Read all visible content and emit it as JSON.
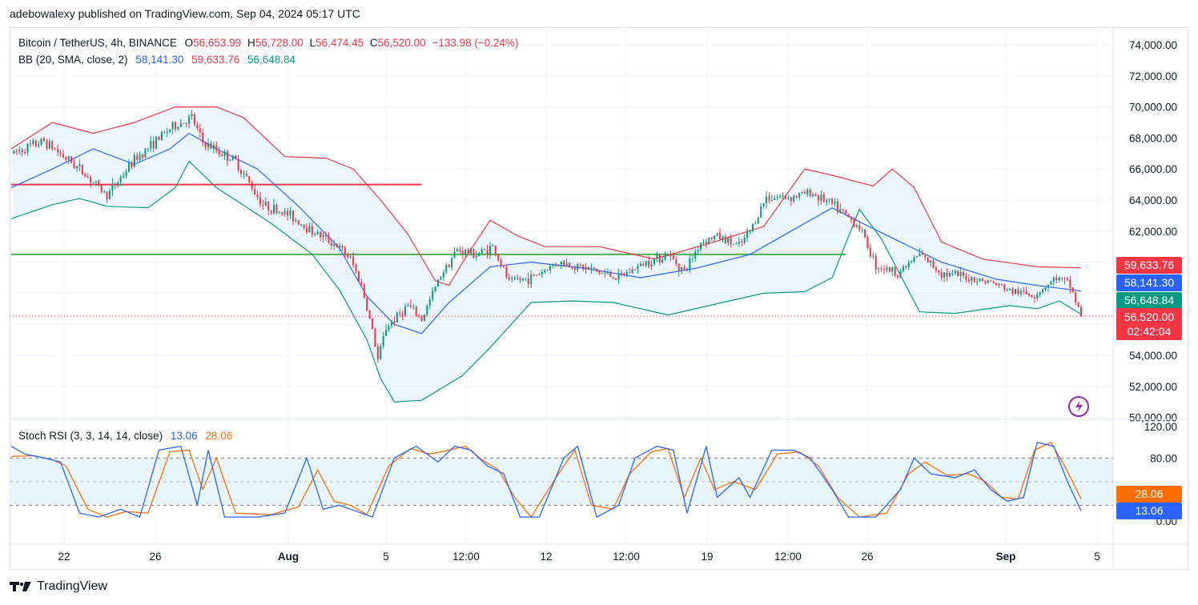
{
  "header": {
    "published_by": "adebowalexy published on TradingView.com, Sep 04, 2024 05:17 UTC"
  },
  "main_legend": {
    "symbol": "Bitcoin / TetherUS, 4h, BINANCE",
    "open_label": "O",
    "open": "56,653.99",
    "high_label": "H",
    "high": "56,728.00",
    "low_label": "L",
    "low": "56,474.45",
    "close_label": "C",
    "close": "56,520.00",
    "change": "−133.98 (−0.24%)"
  },
  "bb_legend": {
    "name": "BB (20, SMA, close, 2)",
    "basis": "58,141.30",
    "upper": "59,633.76",
    "lower": "56,648.84"
  },
  "rsi_legend": {
    "name": "Stoch RSI (3, 3, 14, 14, close)",
    "k": "13.06",
    "d": "28.06"
  },
  "price_axis": {
    "labels": [
      "74,000.00",
      "72,000.00",
      "70,000.00",
      "68,000.00",
      "66,000.00",
      "64,000.00",
      "62,000.00",
      "54,000.00",
      "52,000.00",
      "50,000.00"
    ]
  },
  "price_tags": {
    "upper": "59,633.76",
    "basis": "58,141.30",
    "lower": "56,648.84",
    "last": "56,520.00",
    "countdown": "02:42:04"
  },
  "rsi_axis": {
    "labels": [
      "120.00",
      "80.00",
      "0.00"
    ]
  },
  "rsi_tags": {
    "d": "28.06",
    "k": "13.06"
  },
  "time_axis": {
    "labels": [
      "22",
      "26",
      "Aug",
      "5",
      "12:00",
      "12",
      "12:00",
      "19",
      "12:00",
      "26",
      "Sep",
      "5"
    ]
  },
  "footer": {
    "brand": "TradingView"
  },
  "colors": {
    "up": "#089981",
    "down": "#f23645",
    "bb_basis": "#2962ff",
    "bb_upper": "#f23645",
    "bb_lower": "#089981",
    "bb_fill": "#e3f2fd",
    "k_line": "#2962ff",
    "d_line": "#ff6d00",
    "support_line": "#4caf50",
    "resistance_line": "#f23645"
  },
  "chart_data": [
    {
      "type": "candlestick",
      "title": "Bitcoin / TetherUS, 4h, BINANCE",
      "ylim": [
        50000,
        75000
      ],
      "yticks": [
        50000,
        52000,
        54000,
        56000,
        58000,
        60000,
        62000,
        64000,
        66000,
        68000,
        70000,
        72000,
        74000
      ],
      "x_labels": [
        "22",
        "26",
        "Aug",
        "5",
        "12:00",
        "12",
        "12:00",
        "19",
        "12:00",
        "26",
        "Sep",
        "5"
      ],
      "close_path": [
        [
          0,
          67000
        ],
        [
          12,
          67800
        ],
        [
          25,
          66000
        ],
        [
          35,
          64300
        ],
        [
          45,
          66600
        ],
        [
          58,
          68600
        ],
        [
          66,
          69300
        ],
        [
          70,
          67700
        ],
        [
          82,
          66500
        ],
        [
          92,
          63700
        ],
        [
          102,
          63000
        ],
        [
          110,
          62000
        ],
        [
          118,
          61200
        ],
        [
          124,
          60200
        ],
        [
          128,
          58500
        ],
        [
          132,
          55600
        ],
        [
          134,
          53700
        ],
        [
          137,
          55800
        ],
        [
          145,
          57200
        ],
        [
          150,
          56300
        ],
        [
          157,
          59200
        ],
        [
          163,
          60800
        ],
        [
          170,
          60500
        ],
        [
          176,
          61000
        ],
        [
          182,
          58700
        ],
        [
          190,
          59000
        ],
        [
          200,
          60000
        ],
        [
          210,
          59600
        ],
        [
          222,
          59000
        ],
        [
          232,
          60000
        ],
        [
          240,
          60500
        ],
        [
          246,
          59400
        ],
        [
          252,
          61300
        ],
        [
          258,
          61700
        ],
        [
          266,
          61000
        ],
        [
          270,
          62000
        ],
        [
          276,
          64200
        ],
        [
          285,
          64200
        ],
        [
          292,
          64500
        ],
        [
          300,
          63700
        ],
        [
          310,
          62300
        ],
        [
          316,
          59800
        ],
        [
          324,
          59300
        ],
        [
          332,
          60500
        ],
        [
          340,
          59300
        ],
        [
          350,
          59000
        ],
        [
          358,
          58700
        ],
        [
          366,
          58100
        ],
        [
          374,
          57900
        ],
        [
          382,
          59000
        ],
        [
          387,
          58500
        ],
        [
          391,
          56520
        ]
      ],
      "series": [
        {
          "name": "BB basis",
          "points": [
            [
              0,
              64800
            ],
            [
              15,
              66000
            ],
            [
              30,
              67300
            ],
            [
              45,
              66300
            ],
            [
              58,
              67300
            ],
            [
              65,
              68300
            ],
            [
              75,
              67300
            ],
            [
              90,
              66000
            ],
            [
              105,
              63600
            ],
            [
              120,
              60900
            ],
            [
              130,
              57800
            ],
            [
              140,
              56000
            ],
            [
              150,
              55400
            ],
            [
              160,
              57400
            ],
            [
              175,
              59700
            ],
            [
              190,
              60000
            ],
            [
              210,
              59600
            ],
            [
              230,
              59000
            ],
            [
              250,
              59600
            ],
            [
              270,
              60500
            ],
            [
              285,
              62000
            ],
            [
              300,
              63500
            ],
            [
              310,
              62600
            ],
            [
              325,
              61300
            ],
            [
              340,
              60000
            ],
            [
              360,
              58900
            ],
            [
              375,
              58500
            ],
            [
              391,
              58141
            ]
          ]
        },
        {
          "name": "BB upper",
          "points": [
            [
              0,
              67300
            ],
            [
              15,
              69000
            ],
            [
              30,
              68300
            ],
            [
              45,
              69000
            ],
            [
              60,
              70000
            ],
            [
              75,
              70000
            ],
            [
              85,
              69300
            ],
            [
              100,
              66800
            ],
            [
              115,
              66700
            ],
            [
              125,
              66000
            ],
            [
              135,
              64000
            ],
            [
              145,
              61800
            ],
            [
              155,
              58800
            ],
            [
              160,
              58500
            ],
            [
              165,
              60000
            ],
            [
              175,
              62700
            ],
            [
              185,
              61700
            ],
            [
              195,
              61000
            ],
            [
              215,
              61000
            ],
            [
              235,
              60200
            ],
            [
              255,
              61200
            ],
            [
              275,
              62300
            ],
            [
              290,
              66000
            ],
            [
              300,
              65600
            ],
            [
              315,
              64900
            ],
            [
              322,
              66000
            ],
            [
              330,
              64800
            ],
            [
              340,
              61300
            ],
            [
              355,
              60200
            ],
            [
              375,
              59700
            ],
            [
              391,
              59634
            ]
          ]
        },
        {
          "name": "BB lower",
          "points": [
            [
              0,
              62800
            ],
            [
              15,
              63700
            ],
            [
              25,
              64100
            ],
            [
              35,
              63600
            ],
            [
              50,
              63500
            ],
            [
              60,
              64800
            ],
            [
              65,
              66500
            ],
            [
              75,
              64800
            ],
            [
              95,
              62500
            ],
            [
              110,
              60500
            ],
            [
              120,
              58200
            ],
            [
              130,
              55000
            ],
            [
              135,
              52500
            ],
            [
              140,
              51000
            ],
            [
              150,
              51100
            ],
            [
              165,
              52700
            ],
            [
              175,
              54500
            ],
            [
              190,
              57400
            ],
            [
              205,
              57500
            ],
            [
              220,
              57400
            ],
            [
              240,
              56600
            ],
            [
              260,
              57400
            ],
            [
              275,
              58000
            ],
            [
              290,
              58100
            ],
            [
              300,
              59000
            ],
            [
              310,
              63400
            ],
            [
              318,
              61500
            ],
            [
              332,
              56800
            ],
            [
              345,
              56700
            ],
            [
              365,
              57200
            ],
            [
              375,
              57000
            ],
            [
              383,
              57500
            ],
            [
              391,
              56649
            ]
          ]
        },
        {
          "name": "Horizontal line (resistance)",
          "points": [
            [
              0,
              65000
            ],
            [
              150,
              65000
            ]
          ]
        },
        {
          "name": "Horizontal line (support)",
          "points": [
            [
              0,
              60500
            ],
            [
              305,
              60500
            ]
          ]
        }
      ]
    },
    {
      "type": "line",
      "title": "Stoch RSI (3, 3, 14, 14, close)",
      "ylim": [
        -10,
        125
      ],
      "yticks": [
        0,
        80,
        120
      ],
      "bands": [
        20,
        80
      ],
      "series": [
        {
          "name": "%K",
          "points": [
            [
              0,
              95
            ],
            [
              5,
              85
            ],
            [
              12,
              80
            ],
            [
              18,
              75
            ],
            [
              25,
              10
            ],
            [
              32,
              5
            ],
            [
              40,
              15
            ],
            [
              47,
              5
            ],
            [
              54,
              90
            ],
            [
              62,
              95
            ],
            [
              68,
              20
            ],
            [
              72,
              90
            ],
            [
              78,
              5
            ],
            [
              90,
              5
            ],
            [
              100,
              10
            ],
            [
              108,
              80
            ],
            [
              114,
              15
            ],
            [
              120,
              20
            ],
            [
              124,
              15
            ],
            [
              132,
              5
            ],
            [
              140,
              80
            ],
            [
              148,
              95
            ],
            [
              156,
              75
            ],
            [
              162,
              95
            ],
            [
              168,
              90
            ],
            [
              174,
              70
            ],
            [
              180,
              60
            ],
            [
              186,
              5
            ],
            [
              193,
              5
            ],
            [
              202,
              80
            ],
            [
              207,
              95
            ],
            [
              214,
              5
            ],
            [
              222,
              20
            ],
            [
              228,
              80
            ],
            [
              236,
              95
            ],
            [
              242,
              90
            ],
            [
              247,
              10
            ],
            [
              254,
              95
            ],
            [
              258,
              30
            ],
            [
              266,
              55
            ],
            [
              270,
              30
            ],
            [
              278,
              90
            ],
            [
              286,
              90
            ],
            [
              292,
              80
            ],
            [
              300,
              40
            ],
            [
              306,
              5
            ],
            [
              316,
              5
            ],
            [
              325,
              40
            ],
            [
              330,
              80
            ],
            [
              336,
              60
            ],
            [
              345,
              55
            ],
            [
              352,
              65
            ],
            [
              358,
              40
            ],
            [
              364,
              25
            ],
            [
              370,
              30
            ],
            [
              375,
              100
            ],
            [
              381,
              95
            ],
            [
              386,
              50
            ],
            [
              391,
              13.06
            ]
          ]
        },
        {
          "name": "%D",
          "points": [
            [
              0,
              82
            ],
            [
              8,
              83
            ],
            [
              15,
              78
            ],
            [
              20,
              70
            ],
            [
              28,
              15
            ],
            [
              35,
              5
            ],
            [
              42,
              12
            ],
            [
              50,
              10
            ],
            [
              58,
              88
            ],
            [
              65,
              90
            ],
            [
              70,
              40
            ],
            [
              75,
              80
            ],
            [
              82,
              10
            ],
            [
              95,
              8
            ],
            [
              105,
              18
            ],
            [
              112,
              65
            ],
            [
              118,
              25
            ],
            [
              124,
              20
            ],
            [
              130,
              8
            ],
            [
              138,
              70
            ],
            [
              146,
              92
            ],
            [
              153,
              85
            ],
            [
              160,
              90
            ],
            [
              166,
              95
            ],
            [
              172,
              78
            ],
            [
              178,
              65
            ],
            [
              184,
              30
            ],
            [
              190,
              5
            ],
            [
              200,
              60
            ],
            [
              206,
              90
            ],
            [
              212,
              20
            ],
            [
              220,
              15
            ],
            [
              226,
              60
            ],
            [
              234,
              88
            ],
            [
              240,
              92
            ],
            [
              246,
              30
            ],
            [
              252,
              80
            ],
            [
              257,
              40
            ],
            [
              264,
              50
            ],
            [
              272,
              40
            ],
            [
              280,
              85
            ],
            [
              288,
              88
            ],
            [
              295,
              70
            ],
            [
              302,
              30
            ],
            [
              310,
              5
            ],
            [
              320,
              10
            ],
            [
              328,
              60
            ],
            [
              334,
              75
            ],
            [
              342,
              58
            ],
            [
              350,
              60
            ],
            [
              356,
              50
            ],
            [
              362,
              30
            ],
            [
              368,
              28
            ],
            [
              374,
              90
            ],
            [
              380,
              100
            ],
            [
              385,
              70
            ],
            [
              391,
              28.06
            ]
          ]
        }
      ]
    }
  ]
}
